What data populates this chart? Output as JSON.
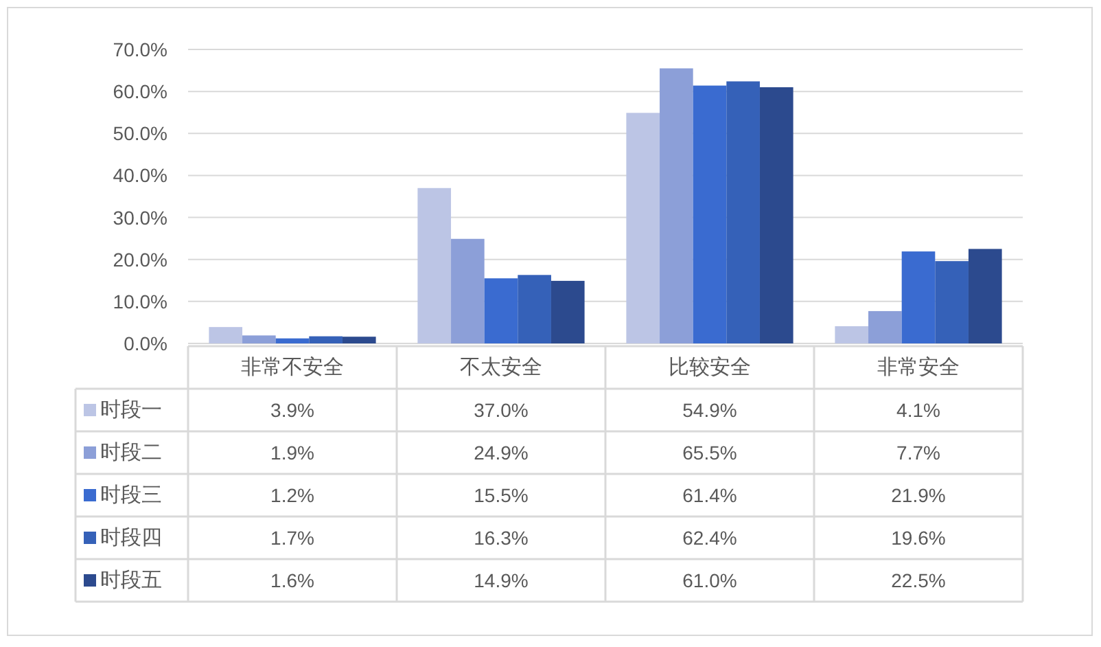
{
  "chart_data": {
    "type": "bar",
    "categories": [
      "非常不安全",
      "不太安全",
      "比较安全",
      "非常安全"
    ],
    "series": [
      {
        "name": "时段一",
        "color": "#bcc5e5",
        "values": [
          3.9,
          37.0,
          54.9,
          4.1
        ],
        "value_labels": [
          "3.9%",
          "37.0%",
          "54.9%",
          "4.1%"
        ]
      },
      {
        "name": "时段二",
        "color": "#8c9fd8",
        "values": [
          1.9,
          24.9,
          65.5,
          7.7
        ],
        "value_labels": [
          "1.9%",
          "24.9%",
          "65.5%",
          "7.7%"
        ]
      },
      {
        "name": "时段三",
        "color": "#3a6bd0",
        "values": [
          1.2,
          15.5,
          61.4,
          21.9
        ],
        "value_labels": [
          "1.2%",
          "15.5%",
          "61.4%",
          "21.9%"
        ]
      },
      {
        "name": "时段四",
        "color": "#3561b8",
        "values": [
          1.7,
          16.3,
          62.4,
          19.6
        ],
        "value_labels": [
          "1.7%",
          "16.3%",
          "62.4%",
          "19.6%"
        ]
      },
      {
        "name": "时段五",
        "color": "#2c4a8e",
        "values": [
          1.6,
          14.9,
          61.0,
          22.5
        ],
        "value_labels": [
          "1.6%",
          "14.9%",
          "61.0%",
          "22.5%"
        ]
      }
    ],
    "ylim": [
      0,
      70
    ],
    "yticks": [
      {
        "value": 0,
        "label": "0.0%"
      },
      {
        "value": 10,
        "label": "10.0%"
      },
      {
        "value": 20,
        "label": "20.0%"
      },
      {
        "value": 30,
        "label": "30.0%"
      },
      {
        "value": 40,
        "label": "40.0%"
      },
      {
        "value": 50,
        "label": "50.0%"
      },
      {
        "value": 60,
        "label": "60.0%"
      },
      {
        "value": 70,
        "label": "70.0%"
      }
    ],
    "grid": "y",
    "legend": "bottom"
  }
}
